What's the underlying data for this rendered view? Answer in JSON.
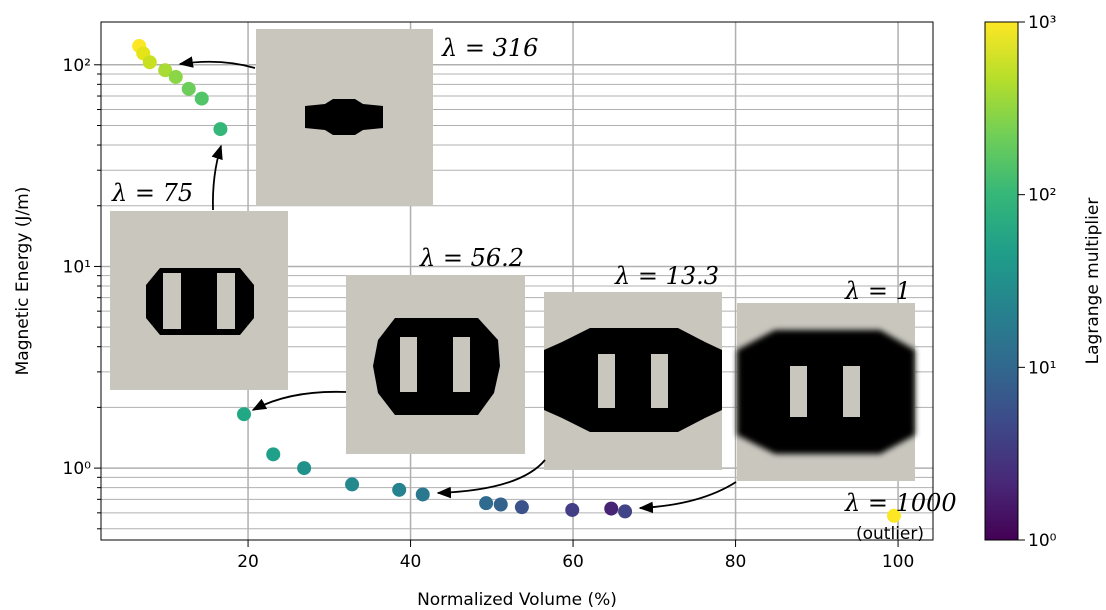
{
  "chart_data": {
    "type": "scatter",
    "x_label": "Normalized Volume (%)",
    "y_label": "Magnetic Energy (J/m)",
    "log_y": true,
    "grid": true,
    "xlim": [
      1.9,
      104.3
    ],
    "xticks": [
      20,
      40,
      60,
      80,
      100
    ],
    "ylim": [
      0.44,
      163
    ],
    "yticks": [
      {
        "value": 1,
        "label": "10⁰"
      },
      {
        "value": 10,
        "label": "10¹"
      },
      {
        "value": 100,
        "label": "10²"
      }
    ],
    "yminorticks": [
      0.5,
      0.6,
      0.7,
      0.8,
      0.9,
      2,
      3,
      4,
      5,
      6,
      7,
      8,
      9,
      20,
      30,
      40,
      50,
      60,
      70,
      80,
      90
    ],
    "x": [
      6.6,
      7.1,
      7.9,
      9.8,
      11.1,
      12.7,
      14.3,
      16.6,
      19.5,
      23.1,
      26.9,
      32.8,
      38.6,
      41.5,
      49.3,
      51.1,
      53.7,
      59.9,
      64.7,
      66.4,
      99.5
    ],
    "y": [
      124,
      114,
      103,
      94,
      87,
      76,
      68,
      48,
      1.85,
      1.17,
      1.0,
      0.83,
      0.78,
      0.74,
      0.67,
      0.66,
      0.64,
      0.62,
      0.63,
      0.61,
      0.58
    ],
    "colors": [
      "#fde725",
      "#e5e419",
      "#c8e020",
      "#a8db34",
      "#8bd646",
      "#6ccd5a",
      "#52c569",
      "#35b779",
      "#22a884",
      "#1fa088",
      "#21918c",
      "#23898e",
      "#26828e",
      "#2a788e",
      "#306a8e",
      "#33638d",
      "#3b528b",
      "#433e85",
      "#482475",
      "#414487",
      "#fde725"
    ],
    "annotations": [
      "λ = 316",
      "λ = 75",
      "λ = 56.2",
      "λ = 13.3",
      "λ = 1",
      "λ = 1000",
      "(outlier)"
    ],
    "colorbar": {
      "label": "Lagrange multiplier",
      "clim": [
        1,
        1000
      ],
      "ticks": [
        {
          "value": 1,
          "label": "10⁰"
        },
        {
          "value": 10,
          "label": "10¹"
        },
        {
          "value": 100,
          "label": "10²"
        },
        {
          "value": 1000,
          "label": "10³"
        }
      ],
      "colors": [
        "#440154",
        "#482878",
        "#3e4989",
        "#31688e",
        "#26828e",
        "#1f9e89",
        "#35b779",
        "#6ece58",
        "#b5de2b",
        "#fde725"
      ]
    }
  }
}
